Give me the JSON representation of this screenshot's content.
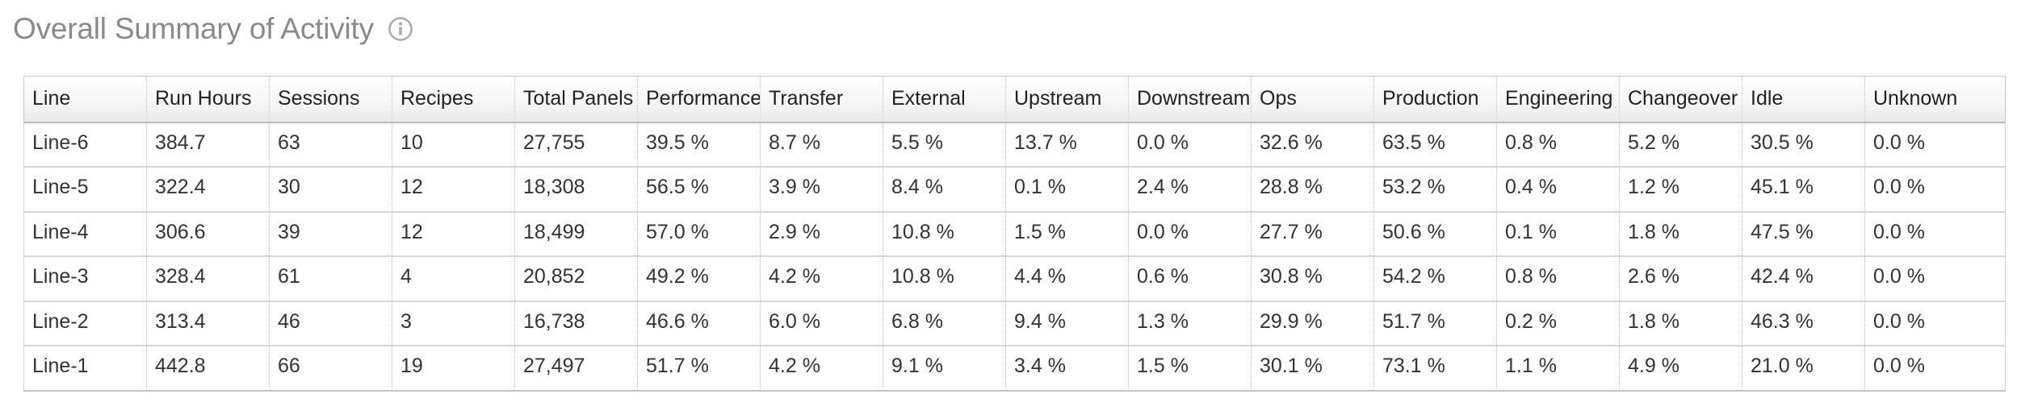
{
  "header": {
    "title": "Overall Summary of Activity",
    "info_icon": "info-circle-icon"
  },
  "table": {
    "columns": [
      "Line",
      "Run Hours",
      "Sessions",
      "Recipes",
      "Total Panels",
      "Performance",
      "Transfer",
      "External",
      "Upstream",
      "Downstream",
      "Ops",
      "Production",
      "Engineering",
      "Changeover",
      "Idle",
      "Unknown"
    ],
    "rows": [
      [
        "Line-6",
        "384.7",
        "63",
        "10",
        "27,755",
        "39.5 %",
        "8.7 %",
        "5.5 %",
        "13.7 %",
        "0.0 %",
        "32.6 %",
        "63.5 %",
        "0.8 %",
        "5.2 %",
        "30.5 %",
        "0.0 %"
      ],
      [
        "Line-5",
        "322.4",
        "30",
        "12",
        "18,308",
        "56.5 %",
        "3.9 %",
        "8.4 %",
        "0.1 %",
        "2.4 %",
        "28.8 %",
        "53.2 %",
        "0.4 %",
        "1.2 %",
        "45.1 %",
        "0.0 %"
      ],
      [
        "Line-4",
        "306.6",
        "39",
        "12",
        "18,499",
        "57.0 %",
        "2.9 %",
        "10.8 %",
        "1.5 %",
        "0.0 %",
        "27.7 %",
        "50.6 %",
        "0.1 %",
        "1.8 %",
        "47.5 %",
        "0.0 %"
      ],
      [
        "Line-3",
        "328.4",
        "61",
        "4",
        "20,852",
        "49.2 %",
        "4.2 %",
        "10.8 %",
        "4.4 %",
        "0.6 %",
        "30.8 %",
        "54.2 %",
        "0.8 %",
        "2.6 %",
        "42.4 %",
        "0.0 %"
      ],
      [
        "Line-2",
        "313.4",
        "46",
        "3",
        "16,738",
        "46.6 %",
        "6.0 %",
        "6.8 %",
        "9.4 %",
        "1.3 %",
        "29.9 %",
        "51.7 %",
        "0.2 %",
        "1.8 %",
        "46.3 %",
        "0.0 %"
      ],
      [
        "Line-1",
        "442.8",
        "66",
        "19",
        "27,497",
        "51.7 %",
        "4.2 %",
        "9.1 %",
        "3.4 %",
        "1.5 %",
        "30.1 %",
        "73.1 %",
        "1.1 %",
        "4.9 %",
        "21.0 %",
        "0.0 %"
      ]
    ]
  },
  "colors": {
    "title": "#8a8a8a",
    "header_bg": "#f0f0f0",
    "border": "#c9c9c9"
  }
}
